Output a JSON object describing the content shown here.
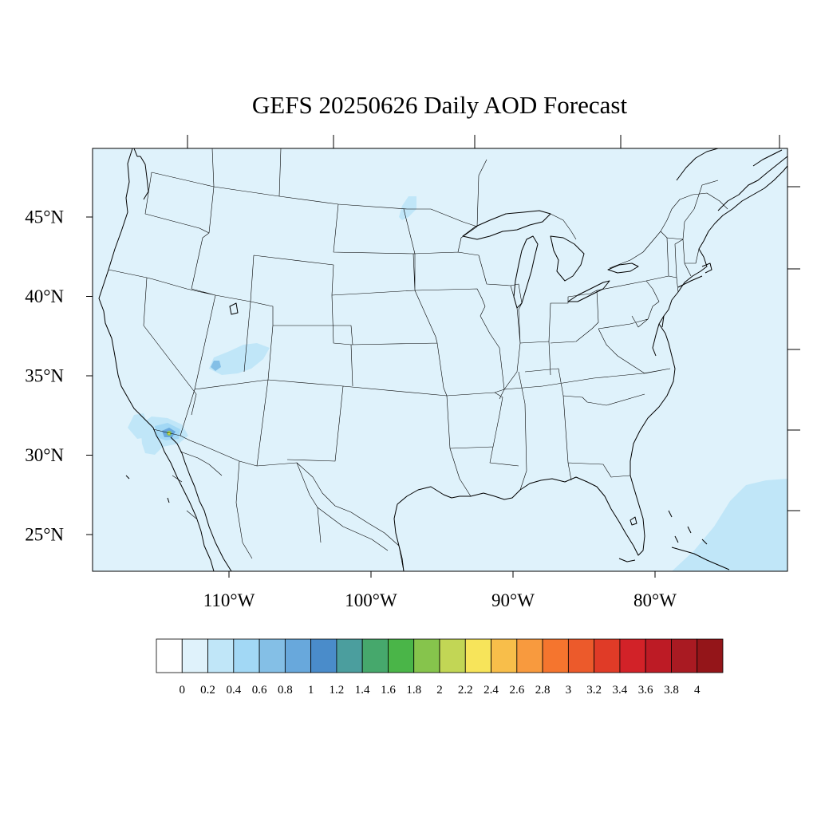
{
  "title": "GEFS 20250626 Daily AOD Forecast",
  "axes": {
    "lat_labels": [
      "45°N",
      "40°N",
      "35°N",
      "30°N",
      "25°N"
    ],
    "lat_values": [
      45,
      40,
      35,
      30,
      25
    ],
    "lon_labels": [
      "110°W",
      "100°W",
      "90°W",
      "80°W"
    ],
    "lon_values": [
      -110,
      -100,
      -90,
      -80
    ]
  },
  "colorbar": {
    "labels": [
      "0",
      "0.2",
      "0.4",
      "0.6",
      "0.8",
      "1",
      "1.2",
      "1.4",
      "1.6",
      "1.8",
      "2",
      "2.2",
      "2.4",
      "2.6",
      "2.8",
      "3",
      "3.2",
      "3.4",
      "3.6",
      "3.8",
      "4"
    ],
    "colors": [
      "#ffffff",
      "#dff2fb",
      "#c0e6f8",
      "#a2d8f5",
      "#84bfe6",
      "#68a8dc",
      "#4a8cca",
      "#4b9e9e",
      "#46a86c",
      "#4ab548",
      "#86c44c",
      "#c2d655",
      "#f7e45a",
      "#f8be4a",
      "#f89a3e",
      "#f5752e",
      "#ec5a2b",
      "#e03b27",
      "#d22228",
      "#bd1b25",
      "#a91a22",
      "#941519"
    ]
  },
  "map": {
    "background_color": "#dff2fb",
    "extent": {
      "lon_min": -119,
      "lon_max": -71,
      "lat_min": 23,
      "lat_max": 49
    },
    "aod_features": [
      {
        "name": "sw-arizona-plume",
        "aod": 0.6
      },
      {
        "name": "sw-arizona-core",
        "aod": 1.8
      },
      {
        "name": "utah-arizona-plume",
        "aod": 0.4
      },
      {
        "name": "utah-arizona-core",
        "aod": 0.8
      },
      {
        "name": "baja-offshore-plume",
        "aod": 0.4
      },
      {
        "name": "north-dakota-patch",
        "aod": 0.4
      },
      {
        "name": "atlantic-patch",
        "aod": 0.4
      }
    ]
  }
}
